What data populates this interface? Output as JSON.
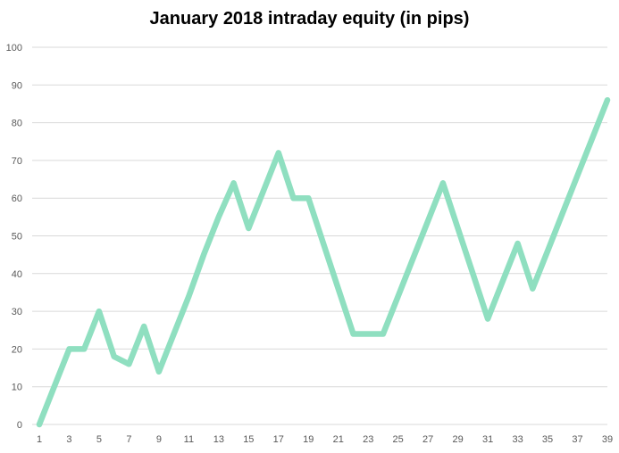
{
  "chart_data": {
    "type": "line",
    "title": "January 2018  intraday equity (in pips)",
    "xlabel": "",
    "ylabel": "",
    "x": [
      1,
      2,
      3,
      4,
      5,
      6,
      7,
      8,
      9,
      10,
      11,
      12,
      13,
      14,
      15,
      16,
      17,
      18,
      19,
      20,
      21,
      22,
      23,
      24,
      25,
      26,
      27,
      28,
      29,
      30,
      31,
      32,
      33,
      34,
      35,
      36,
      37,
      38,
      39
    ],
    "x_tick_labels": [
      "1",
      "3",
      "5",
      "7",
      "9",
      "11",
      "13",
      "15",
      "17",
      "19",
      "21",
      "23",
      "25",
      "27",
      "29",
      "31",
      "33",
      "35",
      "37",
      "39"
    ],
    "y_tick_labels": [
      "0",
      "10",
      "20",
      "30",
      "40",
      "50",
      "60",
      "70",
      "80",
      "90",
      "100"
    ],
    "ylim": [
      0,
      100
    ],
    "grid": true,
    "legend": "none",
    "line_color": "#8fdfc0",
    "grid_color": "#d9d9d9",
    "series": [
      {
        "values": [
          0,
          10,
          20,
          20,
          30,
          18,
          16,
          26,
          14,
          24,
          34,
          45,
          55,
          64,
          52,
          62,
          72,
          60,
          60,
          48,
          36,
          24,
          24,
          24,
          34,
          44,
          54,
          64,
          52,
          40,
          28,
          38,
          48,
          36,
          46,
          56,
          66,
          76,
          86
        ]
      }
    ]
  }
}
